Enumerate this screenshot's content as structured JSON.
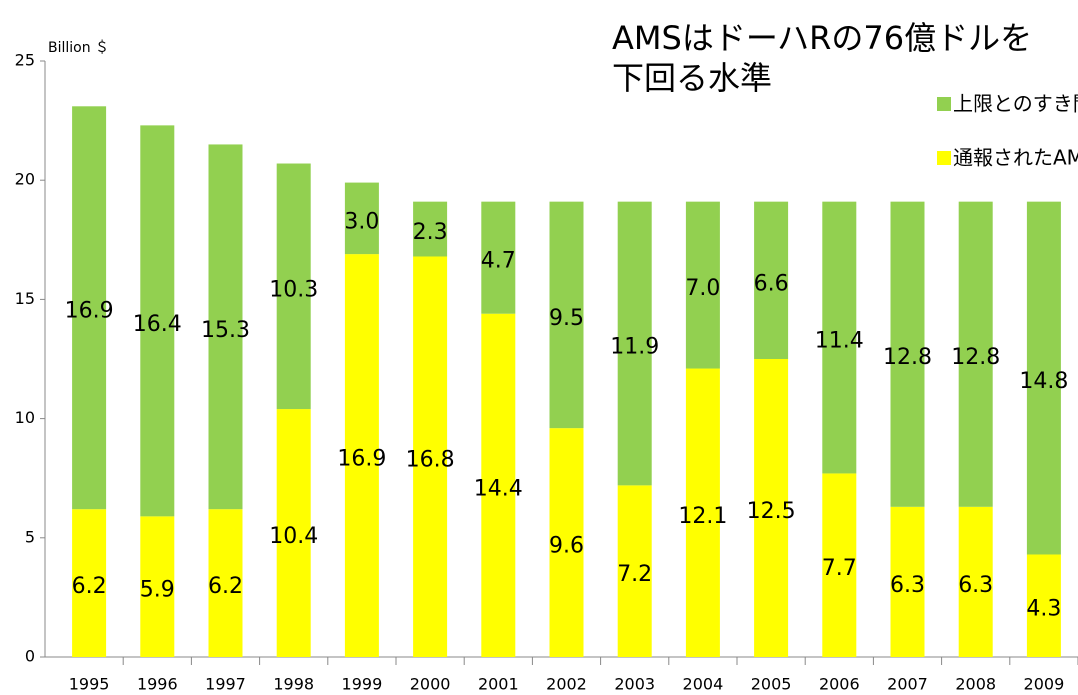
{
  "chart_data": {
    "type": "stacked_bar",
    "title": [
      "AMSはドーハRの76億ドルを",
      "下回る水準"
    ],
    "y_label": "Billion ＄",
    "categories": [
      "1995",
      "1996",
      "1997",
      "1998",
      "1999",
      "2000",
      "2001",
      "2002",
      "2003",
      "2004",
      "2005",
      "2006",
      "2007",
      "2008",
      "2009"
    ],
    "series": [
      {
        "name": "通報されたAMS",
        "color": "#ffff00",
        "values": [
          6.2,
          5.9,
          6.2,
          10.4,
          16.9,
          16.8,
          14.4,
          9.6,
          7.2,
          12.1,
          12.5,
          7.7,
          6.3,
          6.3,
          4.3
        ]
      },
      {
        "name": "上限とのすき間",
        "color": "#92d050",
        "values": [
          16.9,
          16.4,
          15.3,
          10.3,
          3.0,
          2.3,
          4.7,
          9.5,
          11.9,
          7.0,
          6.6,
          11.4,
          12.8,
          12.8,
          14.8
        ],
        "value_labels": [
          "16.9",
          "16.4",
          "15.3",
          "10.3",
          "3.0",
          "2.3",
          "4.7",
          "9.5",
          "11.9",
          "7.0",
          "6.6",
          "11.4",
          "12.8",
          "12.8",
          "14.8"
        ]
      }
    ],
    "legend_order": [
      1,
      0
    ],
    "ylim": [
      0,
      25
    ],
    "yticks": [
      0,
      5,
      10,
      15,
      20,
      25
    ],
    "grid": false
  }
}
